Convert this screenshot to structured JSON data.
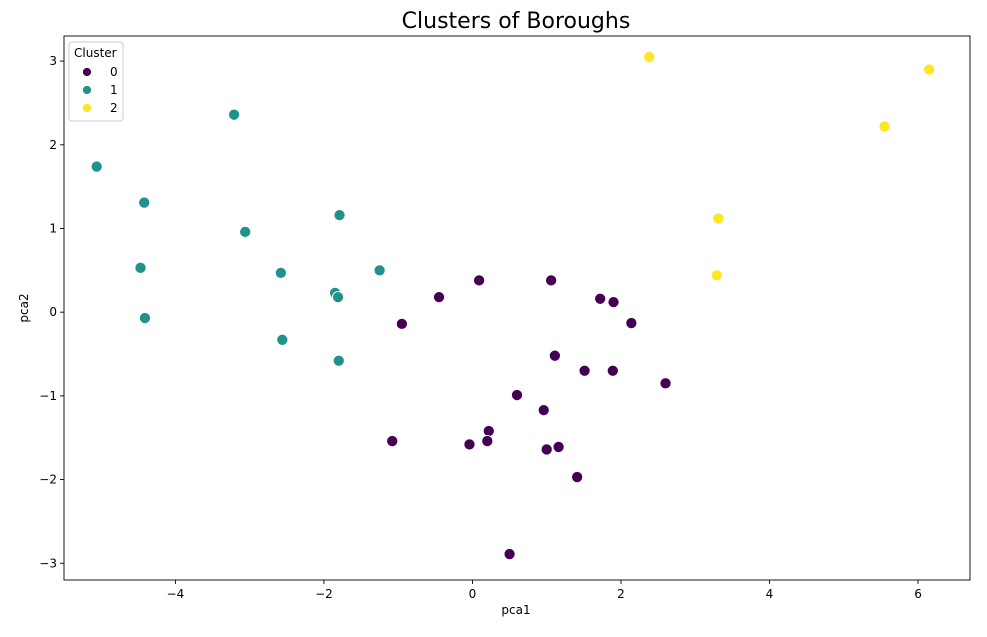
{
  "chart_data": {
    "type": "scatter",
    "title": "Clusters of Boroughs",
    "xlabel": "pca1",
    "ylabel": "pca2",
    "xlim": [
      -5.5,
      6.7
    ],
    "ylim": [
      -3.2,
      3.3
    ],
    "xticks": [
      -4,
      -2,
      0,
      2,
      4,
      6
    ],
    "yticks": [
      -3,
      -2,
      -1,
      0,
      1,
      2,
      3
    ],
    "xtick_labels": [
      "−4",
      "−2",
      "0",
      "2",
      "4",
      "6"
    ],
    "ytick_labels": [
      "−3",
      "−2",
      "−1",
      "0",
      "1",
      "2",
      "3"
    ],
    "grid": false,
    "legend": {
      "title": "Cluster",
      "placement": "top-left"
    },
    "series": [
      {
        "name": "0",
        "color": "#440154",
        "points": [
          [
            -0.95,
            -0.14
          ],
          [
            -0.45,
            0.18
          ],
          [
            0.09,
            0.38
          ],
          [
            1.06,
            0.38
          ],
          [
            1.72,
            0.16
          ],
          [
            1.9,
            0.12
          ],
          [
            2.14,
            -0.13
          ],
          [
            1.11,
            -0.52
          ],
          [
            1.51,
            -0.7
          ],
          [
            1.89,
            -0.7
          ],
          [
            2.6,
            -0.85
          ],
          [
            0.6,
            -0.99
          ],
          [
            0.96,
            -1.17
          ],
          [
            0.22,
            -1.42
          ],
          [
            0.2,
            -1.54
          ],
          [
            -0.04,
            -1.58
          ],
          [
            -1.08,
            -1.54
          ],
          [
            1.0,
            -1.64
          ],
          [
            1.16,
            -1.61
          ],
          [
            1.41,
            -1.97
          ],
          [
            0.5,
            -2.89
          ]
        ]
      },
      {
        "name": "1",
        "color": "#21918c",
        "points": [
          [
            -5.06,
            1.74
          ],
          [
            -3.21,
            2.36
          ],
          [
            -4.42,
            1.31
          ],
          [
            -3.06,
            0.96
          ],
          [
            -1.79,
            1.16
          ],
          [
            -4.47,
            0.53
          ],
          [
            -2.58,
            0.47
          ],
          [
            -1.25,
            0.5
          ],
          [
            -1.85,
            0.23
          ],
          [
            -1.81,
            0.18
          ],
          [
            -4.41,
            -0.07
          ],
          [
            -2.56,
            -0.33
          ],
          [
            -1.8,
            -0.58
          ]
        ]
      },
      {
        "name": "2",
        "color": "#fde725",
        "points": [
          [
            2.38,
            3.05
          ],
          [
            6.15,
            2.9
          ],
          [
            5.55,
            2.22
          ],
          [
            3.31,
            1.12
          ],
          [
            3.29,
            0.44
          ]
        ]
      }
    ]
  }
}
